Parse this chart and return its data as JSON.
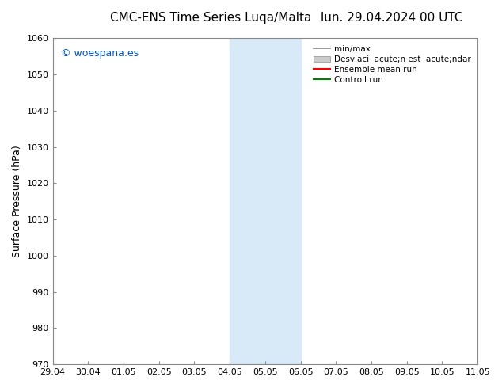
{
  "title_center": "CMC-ENS Time Series Luqa/Malta",
  "title_right": "lun. 29.04.2024 00 UTC",
  "ylabel": "Surface Pressure (hPa)",
  "watermark": "© woespana.es",
  "watermark_color": "#0055cc",
  "ylim": [
    970,
    1060
  ],
  "yticks": [
    970,
    980,
    990,
    1000,
    1010,
    1020,
    1030,
    1040,
    1050,
    1060
  ],
  "xtick_labels": [
    "29.04",
    "30.04",
    "01.05",
    "02.05",
    "03.05",
    "04.05",
    "05.05",
    "06.05",
    "07.05",
    "08.05",
    "09.05",
    "10.05",
    "11.05"
  ],
  "xmin": 0,
  "xmax": 12,
  "shading_start": 5,
  "shading_end": 7,
  "shading_color": "#d8eaf8",
  "bg_color": "#ffffff",
  "legend_label_minmax": "min/max",
  "legend_label_std": "Desviaci  acute;n est  acute;ndar",
  "legend_label_mean": "Ensemble mean run",
  "legend_label_control": "Controll run",
  "line_color_mean": "#ff0000",
  "line_color_control": "#008000",
  "minmax_line_color": "#888888",
  "std_fill_color": "#cccccc",
  "std_edge_color": "#aaaaaa",
  "tick_label_fontsize": 8,
  "title_fontsize": 11,
  "watermark_fontsize": 9,
  "ylabel_fontsize": 9
}
